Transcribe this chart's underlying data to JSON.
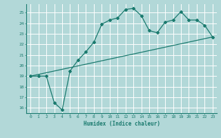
{
  "xlabel": "Humidex (Indice chaleur)",
  "ylabel": "",
  "background_color": "#b2d8d8",
  "grid_color": "#ffffff",
  "line_color": "#1a7a6e",
  "marker": "D",
  "markersize": 2,
  "linewidth": 0.9,
  "xlim": [
    -0.5,
    23.5
  ],
  "ylim": [
    15.5,
    25.8
  ],
  "yticks": [
    16,
    17,
    18,
    19,
    20,
    21,
    22,
    23,
    24,
    25
  ],
  "xticks": [
    0,
    1,
    2,
    3,
    4,
    5,
    6,
    7,
    8,
    9,
    10,
    11,
    12,
    13,
    14,
    15,
    16,
    17,
    18,
    19,
    20,
    21,
    22,
    23
  ],
  "series": [
    {
      "x": [
        0,
        1,
        2,
        3,
        4,
        5,
        6,
        7,
        8,
        9,
        10,
        11,
        12,
        13,
        14,
        15,
        16,
        17,
        18,
        19,
        20,
        21,
        22,
        23
      ],
      "y": [
        19,
        19,
        19,
        16.5,
        15.8,
        19.5,
        20.5,
        21.3,
        22.2,
        23.9,
        24.3,
        24.5,
        25.3,
        25.4,
        24.7,
        23.3,
        23.1,
        24.1,
        24.3,
        25.1,
        24.3,
        24.3,
        23.8,
        22.7
      ]
    },
    {
      "x": [
        0,
        23
      ],
      "y": [
        19.0,
        22.7
      ]
    }
  ]
}
